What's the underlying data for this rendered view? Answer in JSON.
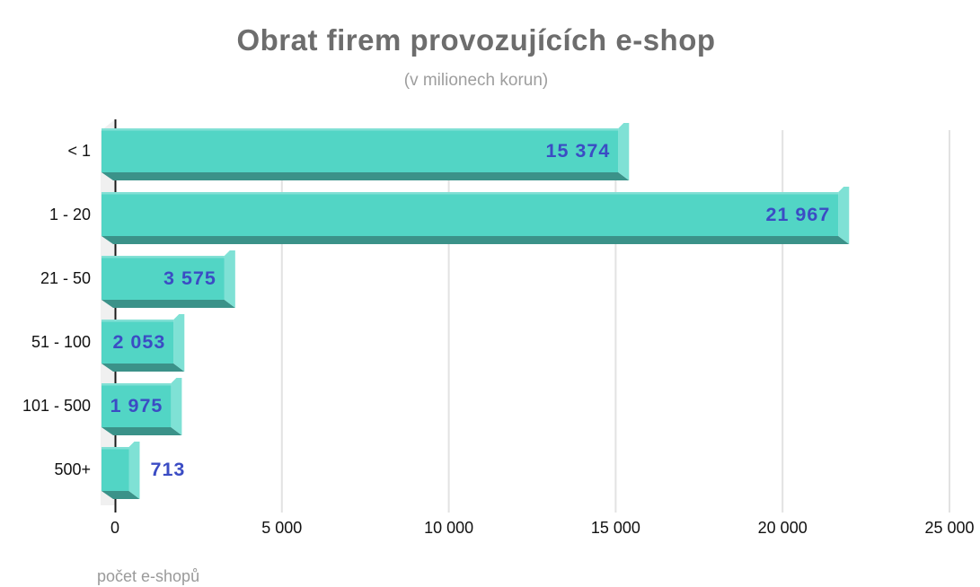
{
  "chart_data": {
    "type": "bar",
    "orientation": "horizontal",
    "style": "3d",
    "title": "Obrat firem provozujících e-shop",
    "subtitle": "(v milionech korun)",
    "xlabel": "počet e-shopů",
    "categories": [
      "< 1",
      "1 - 20",
      "21 - 50",
      "51 - 100",
      "101 - 500",
      "500+"
    ],
    "values": [
      15374,
      21967,
      3575,
      2053,
      1975,
      713
    ],
    "value_labels": [
      "15 374",
      "21 967",
      "3 575",
      "2 053",
      "1 975",
      "713"
    ],
    "value_label_position": [
      "inside",
      "inside",
      "inside",
      "inside",
      "inside",
      "outside"
    ],
    "xlim": [
      0,
      25000
    ],
    "x_ticks": [
      0,
      5000,
      10000,
      15000,
      20000,
      25000
    ],
    "x_tick_labels": [
      "0",
      "5 000",
      "10 000",
      "15 000",
      "20 000",
      "25 000"
    ],
    "grid": true,
    "legend": "none",
    "colors": {
      "bar": "#52d5c5",
      "bar_shadow": "#3b9289",
      "bar_cap": "#7fe1d5",
      "bar_highlight": "rgba(255,255,255,0.28)",
      "value_label": "#3b4cc4",
      "wall": "#f0f0f0",
      "gridline": "#e2e2e2",
      "axis_line": "#1a1a1a",
      "axis_text": "#111111",
      "title": "#6d6d6d",
      "subtitle": "#9e9e9e",
      "xlabel_color": "#9a9a9a"
    }
  }
}
